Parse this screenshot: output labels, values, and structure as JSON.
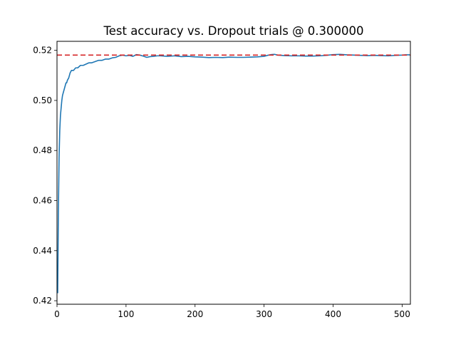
{
  "chart_data": {
    "type": "line",
    "title": "Test accuracy vs. Dropout trials @ 0.300000",
    "xlabel": "",
    "ylabel": "",
    "xlim": [
      0,
      512
    ],
    "ylim": [
      0.4186,
      0.5236
    ],
    "x_ticks": [
      0,
      100,
      200,
      300,
      400,
      500
    ],
    "x_tick_labels": [
      "0",
      "100",
      "200",
      "300",
      "400",
      "500"
    ],
    "y_ticks": [
      0.42,
      0.44,
      0.46,
      0.48,
      0.5,
      0.52
    ],
    "y_tick_labels": [
      "0.42",
      "0.44",
      "0.46",
      "0.48",
      "0.50",
      "0.52"
    ],
    "grid": false,
    "series": [
      {
        "color": "#1f77b4",
        "style": "solid",
        "points": [
          [
            1,
            0.423
          ],
          [
            2,
            0.455
          ],
          [
            3,
            0.477
          ],
          [
            4,
            0.488
          ],
          [
            5,
            0.494
          ],
          [
            6,
            0.497
          ],
          [
            7,
            0.5
          ],
          [
            8,
            0.502
          ],
          [
            9,
            0.503
          ],
          [
            10,
            0.504
          ],
          [
            11,
            0.505
          ],
          [
            12,
            0.506
          ],
          [
            13,
            0.507
          ],
          [
            14,
            0.507
          ],
          [
            15,
            0.508
          ],
          [
            17,
            0.509
          ],
          [
            19,
            0.511
          ],
          [
            21,
            0.512
          ],
          [
            24,
            0.512
          ],
          [
            27,
            0.513
          ],
          [
            30,
            0.513
          ],
          [
            34,
            0.514
          ],
          [
            38,
            0.514
          ],
          [
            42,
            0.5145
          ],
          [
            46,
            0.515
          ],
          [
            50,
            0.515
          ],
          [
            55,
            0.5155
          ],
          [
            60,
            0.516
          ],
          [
            65,
            0.516
          ],
          [
            70,
            0.5165
          ],
          [
            75,
            0.5165
          ],
          [
            80,
            0.517
          ],
          [
            85,
            0.5172
          ],
          [
            90,
            0.5178
          ],
          [
            95,
            0.5181
          ],
          [
            100,
            0.5178
          ],
          [
            105,
            0.518
          ],
          [
            110,
            0.5176
          ],
          [
            115,
            0.5183
          ],
          [
            120,
            0.5181
          ],
          [
            125,
            0.5177
          ],
          [
            130,
            0.5172
          ],
          [
            135,
            0.5175
          ],
          [
            140,
            0.5176
          ],
          [
            145,
            0.5178
          ],
          [
            150,
            0.5178
          ],
          [
            160,
            0.5176
          ],
          [
            170,
            0.5178
          ],
          [
            180,
            0.5175
          ],
          [
            190,
            0.5176
          ],
          [
            200,
            0.5174
          ],
          [
            210,
            0.5173
          ],
          [
            220,
            0.5171
          ],
          [
            230,
            0.5172
          ],
          [
            240,
            0.5171
          ],
          [
            250,
            0.5173
          ],
          [
            260,
            0.5172
          ],
          [
            270,
            0.5172
          ],
          [
            280,
            0.5173
          ],
          [
            290,
            0.5174
          ],
          [
            300,
            0.5176
          ],
          [
            305,
            0.518
          ],
          [
            310,
            0.5183
          ],
          [
            315,
            0.5184
          ],
          [
            320,
            0.5181
          ],
          [
            330,
            0.5179
          ],
          [
            340,
            0.5178
          ],
          [
            350,
            0.5178
          ],
          [
            360,
            0.5177
          ],
          [
            370,
            0.5177
          ],
          [
            380,
            0.5178
          ],
          [
            390,
            0.518
          ],
          [
            400,
            0.5183
          ],
          [
            410,
            0.5184
          ],
          [
            420,
            0.5182
          ],
          [
            430,
            0.5181
          ],
          [
            440,
            0.518
          ],
          [
            450,
            0.5179
          ],
          [
            460,
            0.518
          ],
          [
            470,
            0.5179
          ],
          [
            480,
            0.5178
          ],
          [
            490,
            0.518
          ],
          [
            500,
            0.5181
          ],
          [
            505,
            0.5182
          ],
          [
            511,
            0.5182
          ]
        ]
      },
      {
        "color": "#d62728",
        "style": "dashed",
        "points": [
          [
            0,
            0.5181
          ],
          [
            512,
            0.5181
          ]
        ]
      }
    ]
  }
}
